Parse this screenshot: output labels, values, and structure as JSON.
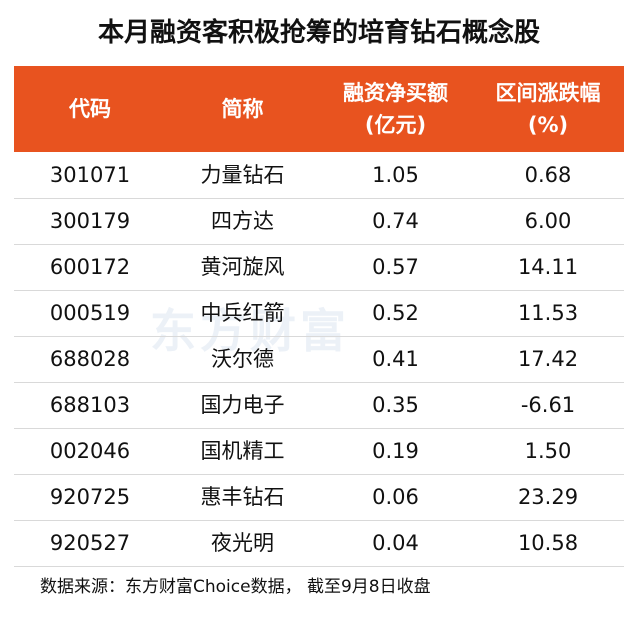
{
  "title": "本月融资客积极抢筹的培育钻石概念股",
  "table": {
    "header": [
      [
        "代码"
      ],
      [
        "简称"
      ],
      [
        "融资净买额",
        "(亿元)"
      ],
      [
        "区间涨跌幅",
        "(%)"
      ]
    ],
    "rows": [
      [
        "301071",
        "力量钻石",
        "1.05",
        "0.68"
      ],
      [
        "300179",
        "四方达",
        "0.74",
        "6.00"
      ],
      [
        "600172",
        "黄河旋风",
        "0.57",
        "14.11"
      ],
      [
        "000519",
        "中兵红箭",
        "0.52",
        "11.53"
      ],
      [
        "688028",
        "沃尔德",
        "0.41",
        "17.42"
      ],
      [
        "688103",
        "国力电子",
        "0.35",
        "-6.61"
      ],
      [
        "002046",
        "国机精工",
        "0.19",
        "1.50"
      ],
      [
        "920725",
        "惠丰钻石",
        "0.06",
        "23.29"
      ],
      [
        "920527",
        "夜光明",
        "0.04",
        "10.58"
      ]
    ]
  },
  "watermark": "东方财富",
  "source": "数据来源：东方财富Choice数据， 截至9月8日收盘"
}
